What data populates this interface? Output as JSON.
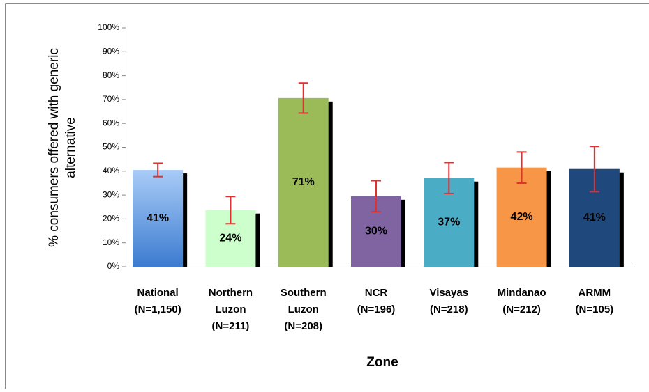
{
  "chart_data": {
    "type": "bar",
    "ylabel": "% consumers offered with generic\nalternative",
    "xlabel": "Zone",
    "categories": [
      "National\n(N=1,150)",
      "Northern\nLuzon\n(N=211)",
      "Southern\nLuzon\n(N=208)",
      "NCR\n(N=196)",
      "Visayas\n(N=218)",
      "Mindanao\n(N=212)",
      "ARMM\n(N=105)"
    ],
    "values": [
      40.5,
      23.7,
      70.6,
      29.5,
      37.1,
      41.5,
      40.9
    ],
    "value_labels": [
      "41%",
      "24%",
      "71%",
      "30%",
      "37%",
      "42%",
      "41%"
    ],
    "errors": [
      2.8,
      5.7,
      6.3,
      6.5,
      6.5,
      6.5,
      9.5
    ],
    "colors": [
      "#8fb8ef",
      "#ccffcc",
      "#9bbb59",
      "#8064a2",
      "#4bacc6",
      "#f79646",
      "#1f497d"
    ],
    "error_color": "#e03030",
    "ylim": [
      0,
      100
    ],
    "yticks": [
      {
        "value": 0,
        "label": "0%"
      },
      {
        "value": 10,
        "label": "10%"
      },
      {
        "value": 20,
        "label": "20%"
      },
      {
        "value": 30,
        "label": "30%"
      },
      {
        "value": 40,
        "label": "40%"
      },
      {
        "value": 50,
        "label": "50%"
      },
      {
        "value": 60,
        "label": "60%"
      },
      {
        "value": 70,
        "label": "70%"
      },
      {
        "value": 80,
        "label": "80%"
      },
      {
        "value": 90,
        "label": "90%"
      },
      {
        "value": 100,
        "label": "100%"
      }
    ]
  }
}
